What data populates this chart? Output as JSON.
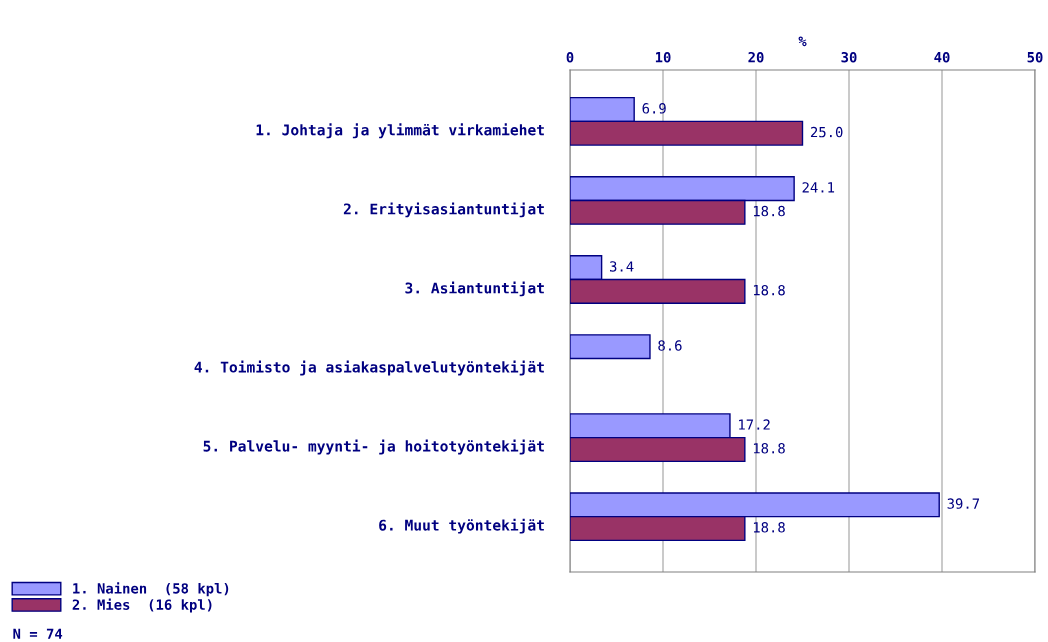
{
  "chart_data": {
    "type": "bar",
    "orientation": "horizontal",
    "xlabel": "%",
    "categories": [
      "1. Johtaja ja ylimmät virkamiehet",
      "2. Erityisasiantuntijat",
      "3. Asiantuntijat",
      "4. Toimisto ja asiakaspalvelutyöntekijät",
      "5. Palvelu- myynti- ja hoitotyöntekijät",
      "6. Muut työntekijät"
    ],
    "series": [
      {
        "name": "1. Nainen  (58 kpl)",
        "color": "#9999ff",
        "values": [
          6.9,
          24.1,
          3.4,
          8.6,
          17.2,
          39.7
        ],
        "value_labels": [
          "6.9",
          "24.1",
          "3.4",
          "8.6",
          "17.2",
          "39.7"
        ]
      },
      {
        "name": "2. Mies  (16 kpl)",
        "color": "#993366",
        "values": [
          25.0,
          18.8,
          18.8,
          null,
          18.8,
          18.8
        ],
        "value_labels": [
          "25.0",
          "18.8",
          "18.8",
          null,
          "18.8",
          "18.8"
        ]
      }
    ],
    "xlim": [
      0,
      50
    ],
    "xticks": [
      0,
      10,
      20,
      30,
      40,
      50
    ],
    "grid": "x",
    "legend": "bottom left",
    "annotations": [
      "N = 74"
    ]
  }
}
